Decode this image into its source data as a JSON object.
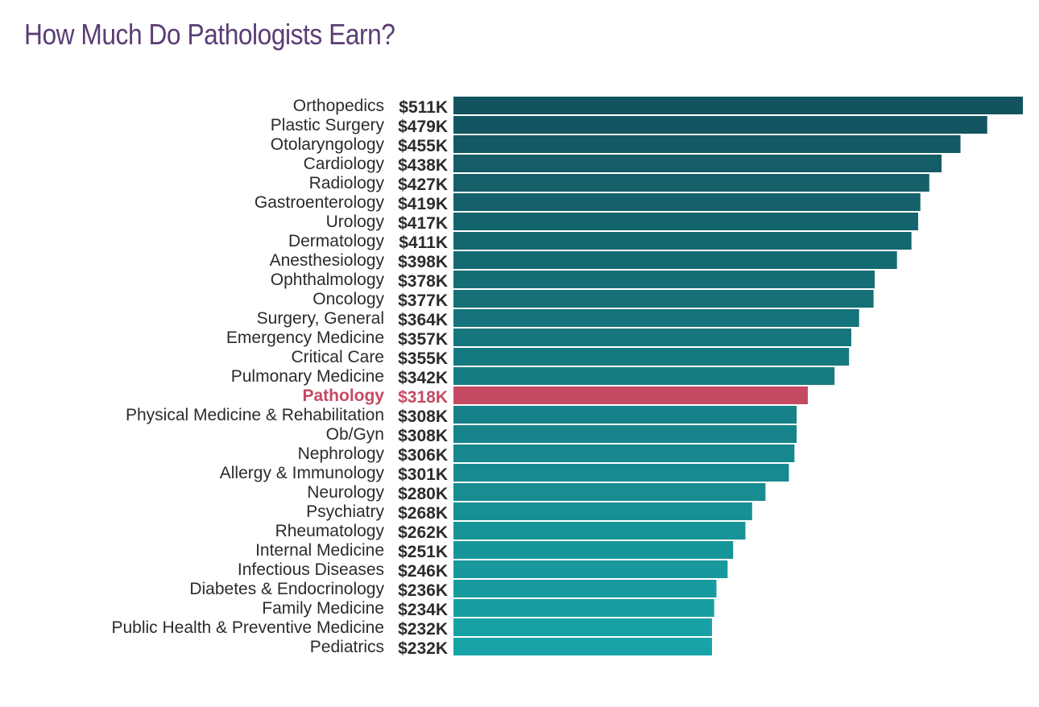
{
  "chart_data": {
    "type": "bar",
    "orientation": "horizontal",
    "title": "How Much Do Pathologists Earn?",
    "categories": [
      "Orthopedics",
      "Plastic Surgery",
      "Otolaryngology",
      "Cardiology",
      "Radiology",
      "Gastroenterology",
      "Urology",
      "Dermatology",
      "Anesthesiology",
      "Ophthalmology",
      "Oncology",
      "Surgery, General",
      "Emergency Medicine",
      "Critical Care",
      "Pulmonary Medicine",
      "Pathology",
      "Physical Medicine & Rehabilitation",
      "Ob/Gyn",
      "Nephrology",
      "Allergy & Immunology",
      "Neurology",
      "Psychiatry",
      "Rheumatology",
      "Internal Medicine",
      "Infectious Diseases",
      "Diabetes & Endocrinology",
      "Family Medicine",
      "Public Health & Preventive Medicine",
      "Pediatrics"
    ],
    "values": [
      511,
      479,
      455,
      438,
      427,
      419,
      417,
      411,
      398,
      378,
      377,
      364,
      357,
      355,
      342,
      318,
      308,
      308,
      306,
      301,
      280,
      268,
      262,
      251,
      246,
      236,
      234,
      232,
      232
    ],
    "value_labels": [
      "$511K",
      "$479K",
      "$455K",
      "$438K",
      "$427K",
      "$419K",
      "$417K",
      "$411K",
      "$398K",
      "$378K",
      "$377K",
      "$364K",
      "$357K",
      "$355K",
      "$342K",
      "$318K",
      "$308K",
      "$308K",
      "$306K",
      "$301K",
      "$280K",
      "$268K",
      "$262K",
      "$251K",
      "$246K",
      "$236K",
      "$234K",
      "$232K",
      "$232K"
    ],
    "unit": "$K",
    "highlight": "Pathology",
    "colors": {
      "top": "#13535e",
      "bottom": "#18a4a7",
      "highlight": "#c44a63",
      "title": "#5a3d74",
      "text": "#2b2b2b"
    },
    "xlim": [
      0,
      511
    ],
    "grid": false,
    "legend": "none"
  }
}
